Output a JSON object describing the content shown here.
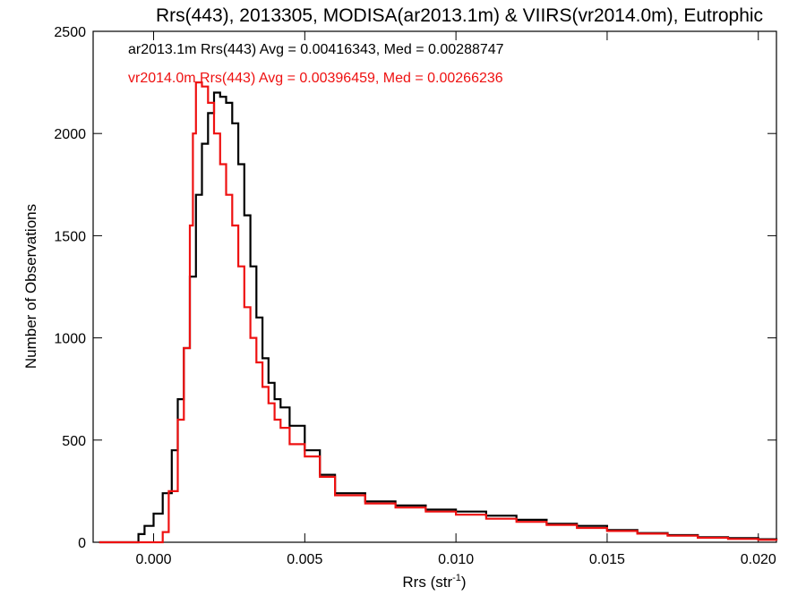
{
  "chart_data": {
    "type": "line",
    "title": "Rrs(443), 2013305, MODISA(ar2013.1m) & VIIRS(vr2014.0m), Eutrophic",
    "xlabel": "Rrs (str",
    "xlabel_sup": "-1",
    "xlabel_close": ")",
    "ylabel": "Number of Observations",
    "xlim": [
      -0.002,
      0.0206
    ],
    "ylim": [
      0,
      2500
    ],
    "x_ticks": [
      0.0,
      0.005,
      0.01,
      0.015,
      0.02
    ],
    "x_tick_labels": [
      "0.000",
      "0.005",
      "0.010",
      "0.015",
      "0.020"
    ],
    "y_ticks": [
      0,
      500,
      1000,
      1500,
      2000,
      2500
    ],
    "y_tick_labels": [
      "0",
      "500",
      "1000",
      "1500",
      "2000",
      "2500"
    ],
    "legend_position": "top-left",
    "series": [
      {
        "name": "ar2013.1m Rrs(443) Avg = 0.00416343, Med = 0.00288747",
        "color": "#000000",
        "x": [
          -0.0018,
          -0.0008,
          -0.0005,
          -0.0003,
          0.0,
          0.0003,
          0.0006,
          0.0008,
          0.001,
          0.0012,
          0.0014,
          0.0016,
          0.0018,
          0.002,
          0.0022,
          0.0024,
          0.0026,
          0.0028,
          0.003,
          0.0032,
          0.0034,
          0.0036,
          0.0038,
          0.004,
          0.0042,
          0.0045,
          0.005,
          0.0055,
          0.006,
          0.007,
          0.008,
          0.009,
          0.01,
          0.011,
          0.012,
          0.013,
          0.014,
          0.015,
          0.016,
          0.017,
          0.018,
          0.019,
          0.02,
          0.0206
        ],
        "y": [
          0,
          0,
          40,
          80,
          140,
          240,
          450,
          700,
          950,
          1300,
          1700,
          1950,
          2100,
          2200,
          2180,
          2150,
          2050,
          1850,
          1600,
          1350,
          1100,
          900,
          780,
          700,
          660,
          570,
          450,
          330,
          240,
          200,
          180,
          160,
          150,
          130,
          110,
          90,
          80,
          60,
          45,
          35,
          25,
          20,
          15,
          10
        ]
      },
      {
        "name": "vr2014.0m Rrs(443) Avg = 0.00396459, Med = 0.00266236",
        "color": "#ee1111",
        "x": [
          -0.0018,
          0.0,
          0.0003,
          0.0005,
          0.0008,
          0.001,
          0.0012,
          0.0013,
          0.0014,
          0.0016,
          0.0018,
          0.002,
          0.0022,
          0.0024,
          0.0026,
          0.0028,
          0.003,
          0.0032,
          0.0034,
          0.0036,
          0.0038,
          0.004,
          0.0042,
          0.0045,
          0.005,
          0.0055,
          0.006,
          0.007,
          0.008,
          0.009,
          0.01,
          0.011,
          0.012,
          0.013,
          0.014,
          0.015,
          0.016,
          0.017,
          0.018,
          0.019,
          0.02,
          0.0206
        ],
        "y": [
          0,
          0,
          50,
          250,
          600,
          950,
          1550,
          2000,
          2250,
          2230,
          2150,
          2000,
          1850,
          1700,
          1550,
          1350,
          1150,
          1000,
          880,
          760,
          680,
          600,
          560,
          480,
          420,
          320,
          230,
          190,
          170,
          150,
          135,
          115,
          100,
          85,
          70,
          55,
          42,
          32,
          22,
          16,
          12,
          8
        ]
      }
    ]
  }
}
